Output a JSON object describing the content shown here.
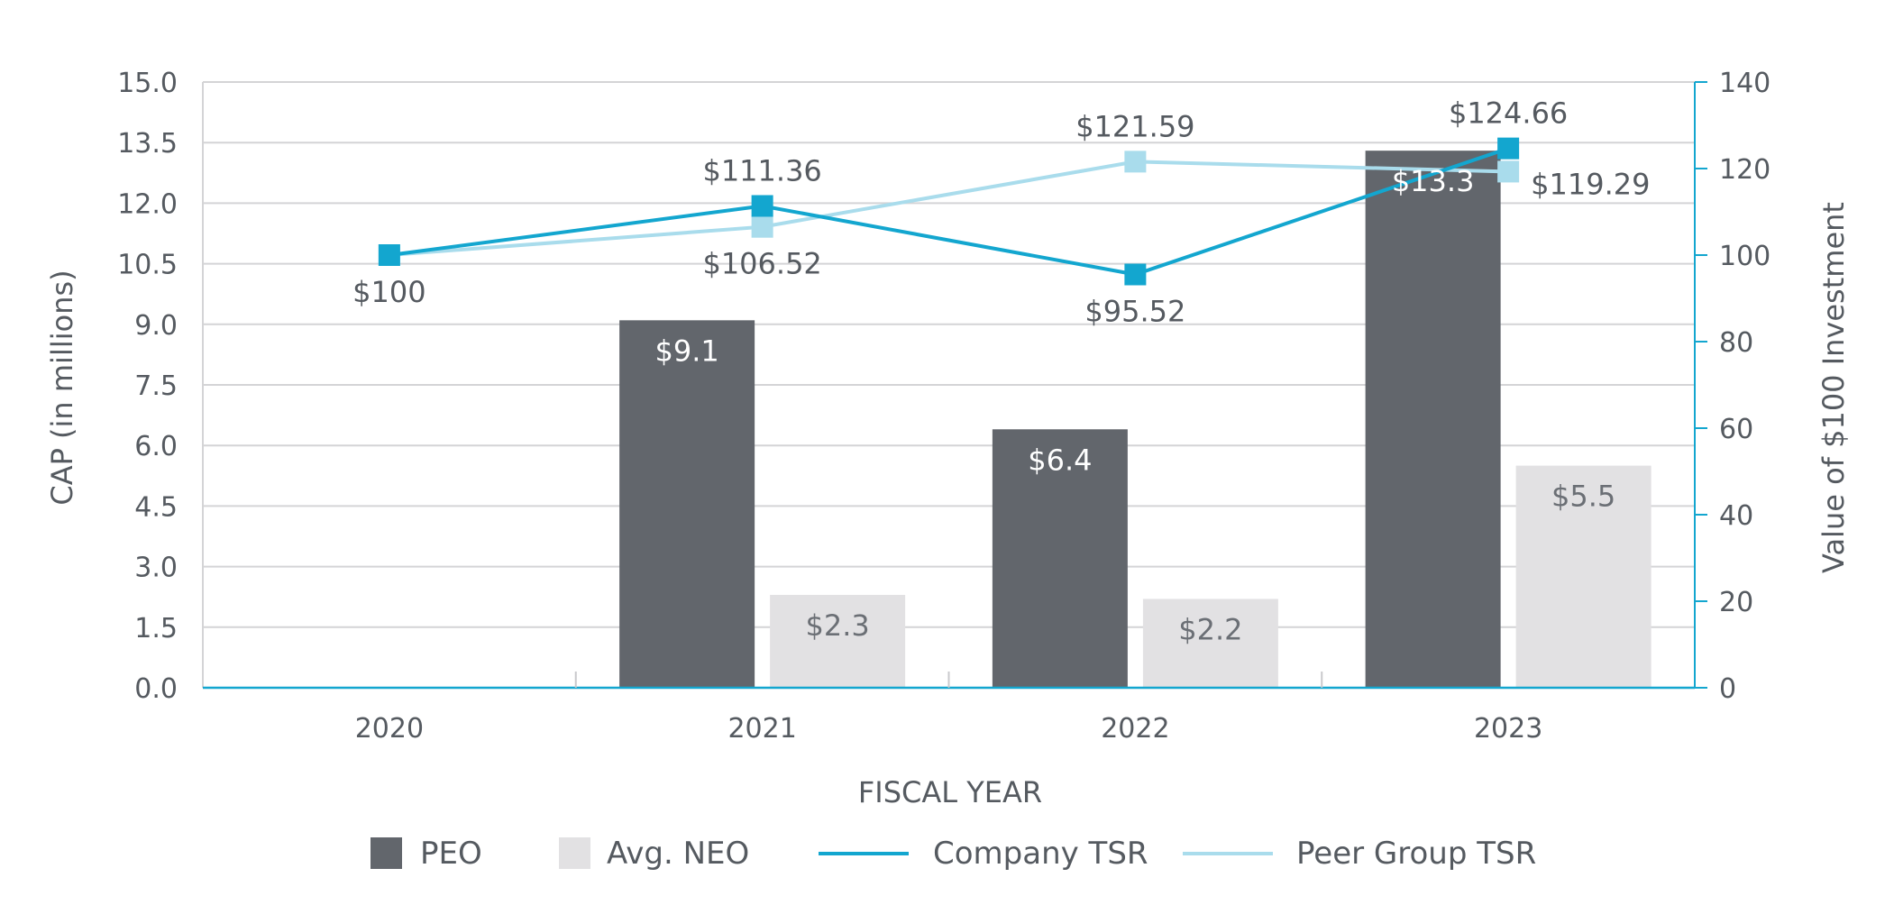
{
  "chart_data": {
    "type": "bar",
    "categories": [
      "2020",
      "2021",
      "2022",
      "2023"
    ],
    "xlabel": "FISCAL YEAR",
    "ylabel": "CAP (in millions)",
    "y2label": "Value of $100 Investment",
    "ylim": [
      0,
      15
    ],
    "yticks": [
      "0.0",
      "1.5",
      "3.0",
      "4.5",
      "6.0",
      "7.5",
      "9.0",
      "10.5",
      "12.0",
      "13.5",
      "15.0"
    ],
    "y2lim": [
      0,
      140
    ],
    "y2ticks": [
      "0",
      "20",
      "40",
      "60",
      "80",
      "100",
      "120",
      "140"
    ],
    "grid": true,
    "series": [
      {
        "name": "PEO",
        "type": "bar",
        "axis": "left",
        "color": "#62666c",
        "values": [
          null,
          9.1,
          6.4,
          13.3
        ],
        "labels": [
          "",
          "$9.1",
          "$6.4",
          "$13.3"
        ]
      },
      {
        "name": "Avg. NEO",
        "type": "bar",
        "axis": "left",
        "color": "#e2e1e3",
        "values": [
          null,
          2.3,
          2.2,
          5.5
        ],
        "labels": [
          "",
          "$2.3",
          "$2.2",
          "$5.5"
        ]
      },
      {
        "name": "Company TSR",
        "type": "line",
        "axis": "right",
        "color": "#13a6cf",
        "values": [
          100,
          111.36,
          95.52,
          124.66
        ],
        "labels": [
          "$100",
          "$111.36",
          "$95.52",
          "$124.66"
        ],
        "label_pos": [
          "below",
          "above",
          "below",
          "above"
        ]
      },
      {
        "name": "Peer Group TSR",
        "type": "line",
        "axis": "right",
        "color": "#a9dcec",
        "values": [
          100,
          106.52,
          121.59,
          119.29
        ],
        "labels": [
          "",
          "$106.52",
          "$121.59",
          "$119.29"
        ],
        "label_pos": [
          "none",
          "below",
          "above",
          "below-right"
        ]
      }
    ],
    "legend": {
      "position": "bottom",
      "items": [
        {
          "label": "PEO",
          "kind": "box",
          "color": "#62666c"
        },
        {
          "label": "Avg. NEO",
          "kind": "box",
          "color": "#e2e1e3"
        },
        {
          "label": "Company TSR",
          "kind": "line",
          "color": "#13a6cf"
        },
        {
          "label": "Peer Group TSR",
          "kind": "line",
          "color": "#a9dcec"
        }
      ]
    }
  }
}
